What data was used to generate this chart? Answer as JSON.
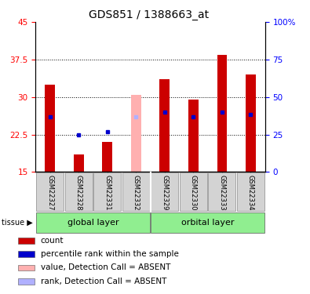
{
  "title": "GDS851 / 1388663_at",
  "samples": [
    "GSM22327",
    "GSM22328",
    "GSM22331",
    "GSM22332",
    "GSM22329",
    "GSM22330",
    "GSM22333",
    "GSM22334"
  ],
  "count_values": [
    32.5,
    18.5,
    21.0,
    null,
    33.5,
    29.5,
    38.5,
    34.5
  ],
  "rank_values": [
    26.0,
    22.5,
    23.0,
    null,
    27.0,
    26.0,
    27.0,
    26.5
  ],
  "absent_count": [
    null,
    null,
    null,
    30.5,
    null,
    null,
    null,
    null
  ],
  "absent_rank": [
    null,
    null,
    null,
    26.0,
    null,
    null,
    null,
    null
  ],
  "ylim_left": [
    15,
    45
  ],
  "ylim_right": [
    0,
    100
  ],
  "yticks_left": [
    15,
    22.5,
    30,
    37.5,
    45
  ],
  "yticks_right": [
    0,
    25,
    50,
    75,
    100
  ],
  "bar_color": "#CC0000",
  "rank_color": "#0000CC",
  "absent_bar_color": "#FFB0B0",
  "absent_rank_color": "#B0B0FF",
  "bar_width": 0.35,
  "group_colors": [
    "#90EE90",
    "#90EE90"
  ],
  "group_names": [
    "global layer",
    "orbital layer"
  ],
  "group_ranges": [
    [
      0,
      3
    ],
    [
      4,
      7
    ]
  ],
  "legend_items": [
    {
      "label": "count",
      "color": "#CC0000"
    },
    {
      "label": "percentile rank within the sample",
      "color": "#0000CC"
    },
    {
      "label": "value, Detection Call = ABSENT",
      "color": "#FFB0B0"
    },
    {
      "label": "rank, Detection Call = ABSENT",
      "color": "#B0B0FF"
    }
  ],
  "grid_lines": [
    22.5,
    30,
    37.5
  ],
  "title_fontsize": 10,
  "tick_fontsize": 7.5,
  "sample_fontsize": 6,
  "group_fontsize": 8,
  "legend_fontsize": 7.5
}
